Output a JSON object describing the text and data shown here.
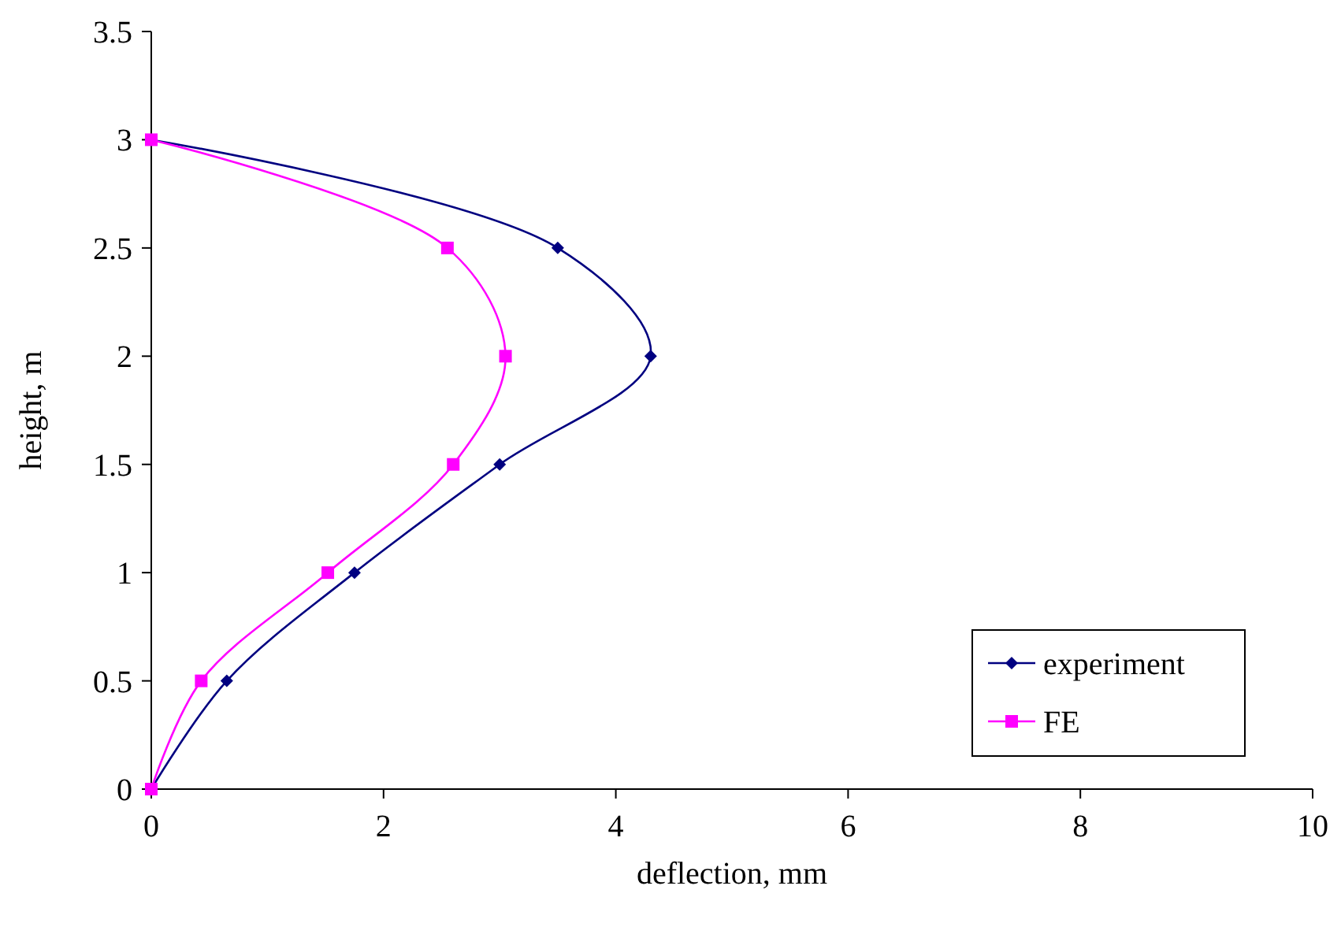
{
  "chart_data": {
    "type": "line",
    "xlabel": "deflection, mm",
    "ylabel": "height, m",
    "xlim": [
      0,
      10
    ],
    "xticks": [
      0,
      2,
      4,
      6,
      8,
      10
    ],
    "ylim": [
      0,
      3.5
    ],
    "yticks": [
      0,
      0.5,
      1,
      1.5,
      2,
      2.5,
      3,
      3.5
    ],
    "grid": false,
    "legend": "bottom right",
    "line_style": "solid",
    "series": [
      {
        "name": "experiment",
        "color": "#000080",
        "marker": "diamond",
        "x": [
          0,
          0.65,
          1.75,
          3.0,
          4.3,
          3.5,
          0
        ],
        "values": [
          0,
          0.5,
          1,
          1.5,
          2,
          2.5,
          3
        ]
      },
      {
        "name": "FE",
        "color": "#ff00ff",
        "marker": "square",
        "x": [
          0,
          0.43,
          1.52,
          2.6,
          3.05,
          2.55,
          0
        ],
        "values": [
          0,
          0.5,
          1,
          1.5,
          2,
          2.5,
          3
        ]
      }
    ]
  }
}
